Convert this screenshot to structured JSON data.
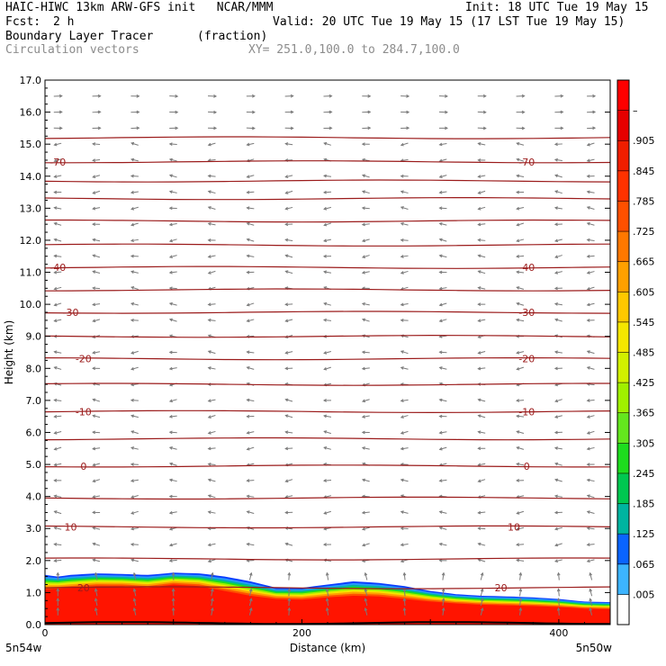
{
  "header": {
    "line1_left": "HAIC-HIWC 13km ARW-GFS init   NCAR/MMM",
    "line1_right": "Init: 18 UTC Tue 19 May 15",
    "fcst_label": "Fcst:",
    "fcst_value": "2 h",
    "valid": "Valid: 20 UTC Tue 19 May 15 (17 LST Tue 19 May 15)",
    "field_name": "Boundary Layer Tracer",
    "field_units": "(fraction)",
    "vector_label": "Circulation vectors",
    "xy_range": "XY= 251.0,100.0 to 284.7,100.0"
  },
  "chart_data": {
    "type": "heatmap",
    "xlabel": "Distance (km)",
    "ylabel": "Height (km)",
    "xlim": [
      0,
      440
    ],
    "ylim": [
      0,
      17
    ],
    "x_ticks": [
      0,
      200,
      400
    ],
    "x_tick_labels": [
      "0",
      "200",
      "400"
    ],
    "y_ticks": [
      0,
      1,
      2,
      3,
      4,
      5,
      6,
      7,
      8,
      9,
      10,
      11,
      12,
      13,
      14,
      15,
      16,
      17
    ],
    "y_tick_labels": [
      "0.0",
      "1.0",
      "2.0",
      "3.0",
      "4.0",
      "5.0",
      "6.0",
      "7.0",
      "8.0",
      "9.0",
      "10.0",
      "11.0",
      "12.0",
      "13.0",
      "14.0",
      "15.0",
      "16.0",
      "17.0"
    ],
    "x_end_labels": [
      "5n54w",
      "5n50w"
    ],
    "colorbar": {
      "levels": [
        ".005",
        ".065",
        ".125",
        ".185",
        ".245",
        ".305",
        ".365",
        ".425",
        ".485",
        ".545",
        ".605",
        ".665",
        ".725",
        ".785",
        ".845",
        ".905",
        "–"
      ],
      "colors": [
        "#ffffff",
        "#3cb4ff",
        "#0a64ff",
        "#00b4a0",
        "#00c850",
        "#1edc1e",
        "#64e61e",
        "#a0f000",
        "#d2f000",
        "#f5e600",
        "#ffc800",
        "#ffa000",
        "#ff7800",
        "#ff5000",
        "#ff3200",
        "#f01e00",
        "#e60000",
        "#ff0000"
      ]
    },
    "tracer_top_km": [
      [
        0,
        1.55
      ],
      [
        10,
        1.5
      ],
      [
        20,
        1.55
      ],
      [
        40,
        1.6
      ],
      [
        60,
        1.58
      ],
      [
        80,
        1.55
      ],
      [
        100,
        1.62
      ],
      [
        120,
        1.6
      ],
      [
        140,
        1.5
      ],
      [
        160,
        1.35
      ],
      [
        180,
        1.15
      ],
      [
        200,
        1.15
      ],
      [
        220,
        1.25
      ],
      [
        240,
        1.35
      ],
      [
        260,
        1.3
      ],
      [
        280,
        1.2
      ],
      [
        300,
        1.05
      ],
      [
        320,
        0.95
      ],
      [
        340,
        0.9
      ],
      [
        360,
        0.88
      ],
      [
        380,
        0.85
      ],
      [
        400,
        0.8
      ],
      [
        420,
        0.72
      ],
      [
        440,
        0.7
      ]
    ],
    "tracer_core_km": [
      [
        0,
        1.1
      ],
      [
        20,
        1.15
      ],
      [
        40,
        1.2
      ],
      [
        60,
        1.2
      ],
      [
        80,
        1.15
      ],
      [
        100,
        1.25
      ],
      [
        120,
        1.2
      ],
      [
        140,
        1.05
      ],
      [
        160,
        0.9
      ],
      [
        180,
        0.8
      ],
      [
        200,
        0.78
      ],
      [
        220,
        0.85
      ],
      [
        240,
        0.9
      ],
      [
        260,
        0.88
      ],
      [
        280,
        0.8
      ],
      [
        300,
        0.72
      ],
      [
        320,
        0.66
      ],
      [
        340,
        0.62
      ],
      [
        360,
        0.6
      ],
      [
        380,
        0.58
      ],
      [
        400,
        0.55
      ],
      [
        420,
        0.5
      ],
      [
        440,
        0.48
      ]
    ],
    "isotherms": {
      "color": "#9b1b1b",
      "lines_km": [
        1.15,
        2.05,
        3.05,
        3.95,
        4.95,
        5.8,
        6.65,
        7.5,
        8.3,
        9.0,
        9.75,
        10.45,
        11.15,
        11.85,
        12.6,
        13.3,
        13.85,
        14.45,
        15.2
      ],
      "labels": [
        {
          "text": "20",
          "y": 1.15,
          "x": [
            30,
            355
          ]
        },
        {
          "text": "10",
          "y": 3.05,
          "x": [
            20,
            365
          ]
        },
        {
          "text": "0",
          "y": 4.95,
          "x": [
            30,
            375
          ]
        },
        {
          "text": "-10",
          "y": 6.65,
          "x": [
            30,
            375
          ]
        },
        {
          "text": "-20",
          "y": 8.3,
          "x": [
            30,
            375
          ]
        },
        {
          "text": "-30",
          "y": 9.75,
          "x": [
            20,
            375
          ]
        },
        {
          "text": "-40",
          "y": 11.15,
          "x": [
            10,
            375
          ]
        },
        {
          "text": "-70",
          "y": 14.45,
          "x": [
            10,
            375
          ]
        }
      ]
    },
    "vectors": {
      "color": "#7a7a7a",
      "x_km": [
        10,
        40,
        70,
        100,
        130,
        160,
        190,
        220,
        250,
        280,
        310,
        340,
        370,
        400,
        425
      ],
      "levels_km": [
        0.4,
        0.7,
        1.0,
        1.5,
        2.0,
        2.5,
        3.0,
        3.5,
        4.0,
        4.5,
        5.0,
        5.5,
        6.0,
        6.5,
        7.0,
        7.5,
        8.0,
        8.5,
        9.0,
        9.5,
        10.0,
        10.5,
        11.0,
        11.5,
        12.0,
        12.5,
        13.0,
        13.5,
        14.0,
        14.5,
        15.0,
        15.5,
        16.0,
        16.5
      ]
    }
  }
}
